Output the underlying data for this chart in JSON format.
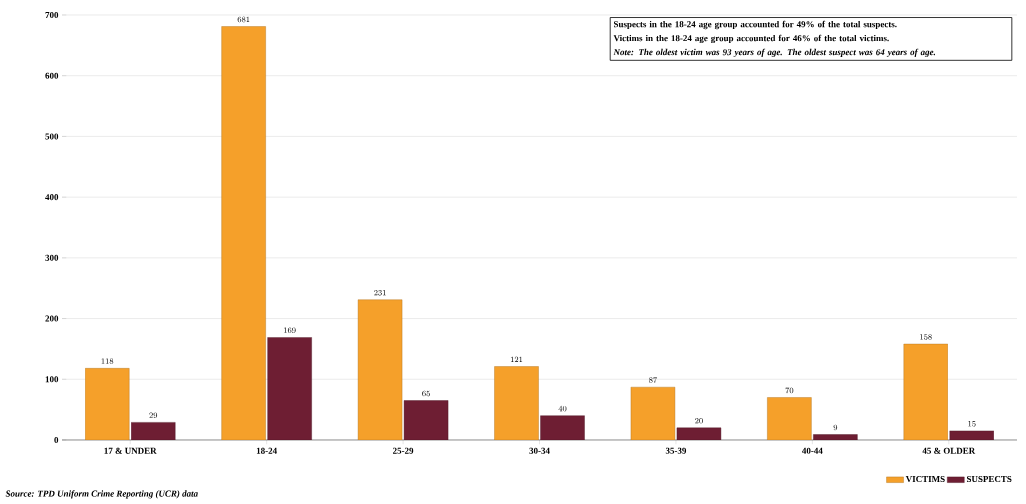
{
  "chart_data": {
    "type": "bar",
    "categories": [
      "17 & UNDER",
      "18-24",
      "25-29",
      "30-34",
      "35-39",
      "40-44",
      "45 & OLDER"
    ],
    "series": [
      {
        "name": "VICTIMS",
        "color": "#f5a02a",
        "values": [
          118,
          681,
          231,
          121,
          87,
          70,
          158
        ]
      },
      {
        "name": "SUSPECTS",
        "color": "#6e1e33",
        "values": [
          29,
          169,
          65,
          40,
          20,
          9,
          15
        ]
      }
    ],
    "ylim": [
      0,
      700
    ],
    "yticks": [
      0,
      100,
      200,
      300,
      400,
      500,
      600,
      700
    ],
    "grid": "y",
    "legend": "bottom right",
    "data_labels": true,
    "annotations": [
      "Suspects in the 18-24 age group accounted for 49% of the total suspects.",
      "Victims in the 18-24 age group accounted for 46% of the total victims.",
      "Note: The oldest victim was 93 years of age. The oldest suspect was 64 years of age.",
      "Source: TPD Uniform Crime Reporting (UCR) data"
    ]
  }
}
